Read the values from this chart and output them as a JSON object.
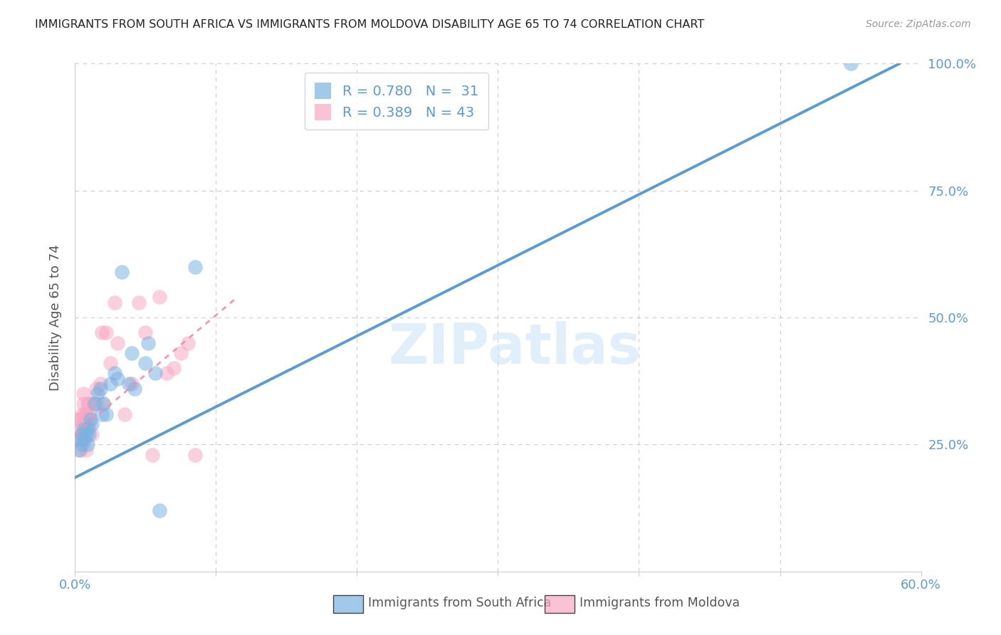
{
  "title": "IMMIGRANTS FROM SOUTH AFRICA VS IMMIGRANTS FROM MOLDOVA DISABILITY AGE 65 TO 74 CORRELATION CHART",
  "source": "Source: ZipAtlas.com",
  "ylabel": "Disability Age 65 to 74",
  "xlim": [
    0.0,
    0.6
  ],
  "ylim": [
    0.0,
    1.0
  ],
  "blue_color": "#5b9bd5",
  "pink_color": "#f48fb1",
  "blue_scatter": "#7ab3e0",
  "pink_scatter": "#f7a8c4",
  "watermark": "ZIPatlas",
  "blue_line_x": [
    0.0,
    0.585
  ],
  "blue_line_y": [
    0.185,
    1.0
  ],
  "pink_line_x": [
    0.0,
    0.115
  ],
  "pink_line_y": [
    0.27,
    0.54
  ],
  "south_africa_x": [
    0.003,
    0.004,
    0.005,
    0.005,
    0.006,
    0.007,
    0.008,
    0.009,
    0.009,
    0.01,
    0.011,
    0.012,
    0.014,
    0.016,
    0.018,
    0.019,
    0.02,
    0.022,
    0.025,
    0.028,
    0.03,
    0.033,
    0.038,
    0.04,
    0.042,
    0.05,
    0.052,
    0.057,
    0.06,
    0.085,
    0.55
  ],
  "south_africa_y": [
    0.24,
    0.26,
    0.25,
    0.27,
    0.28,
    0.26,
    0.27,
    0.25,
    0.28,
    0.27,
    0.3,
    0.29,
    0.33,
    0.35,
    0.36,
    0.31,
    0.33,
    0.31,
    0.37,
    0.39,
    0.38,
    0.59,
    0.37,
    0.43,
    0.36,
    0.41,
    0.45,
    0.39,
    0.12,
    0.6,
    1.0
  ],
  "moldova_x": [
    0.002,
    0.003,
    0.003,
    0.004,
    0.004,
    0.005,
    0.005,
    0.005,
    0.006,
    0.006,
    0.006,
    0.007,
    0.007,
    0.008,
    0.008,
    0.008,
    0.009,
    0.009,
    0.01,
    0.01,
    0.01,
    0.012,
    0.013,
    0.015,
    0.016,
    0.018,
    0.019,
    0.02,
    0.022,
    0.025,
    0.028,
    0.03,
    0.035,
    0.04,
    0.045,
    0.05,
    0.055,
    0.06,
    0.065,
    0.07,
    0.075,
    0.08,
    0.085
  ],
  "moldova_y": [
    0.26,
    0.28,
    0.3,
    0.24,
    0.3,
    0.27,
    0.29,
    0.31,
    0.33,
    0.35,
    0.26,
    0.29,
    0.31,
    0.24,
    0.29,
    0.31,
    0.31,
    0.33,
    0.29,
    0.31,
    0.33,
    0.27,
    0.33,
    0.36,
    0.33,
    0.37,
    0.47,
    0.33,
    0.47,
    0.41,
    0.53,
    0.45,
    0.31,
    0.37,
    0.53,
    0.47,
    0.23,
    0.54,
    0.39,
    0.4,
    0.43,
    0.45,
    0.23
  ],
  "grid_color": "#cccccc",
  "background_color": "#ffffff",
  "title_color": "#222222",
  "axis_label_color": "#555555",
  "right_axis_color": "#5b9bd5",
  "bottom_label_color": "#5b9bd5",
  "legend_r1": "R = 0.780   N =  31",
  "legend_r2": "R = 0.389   N = 43",
  "bottom_legend1": "Immigrants from South Africa",
  "bottom_legend2": "Immigrants from Moldova"
}
